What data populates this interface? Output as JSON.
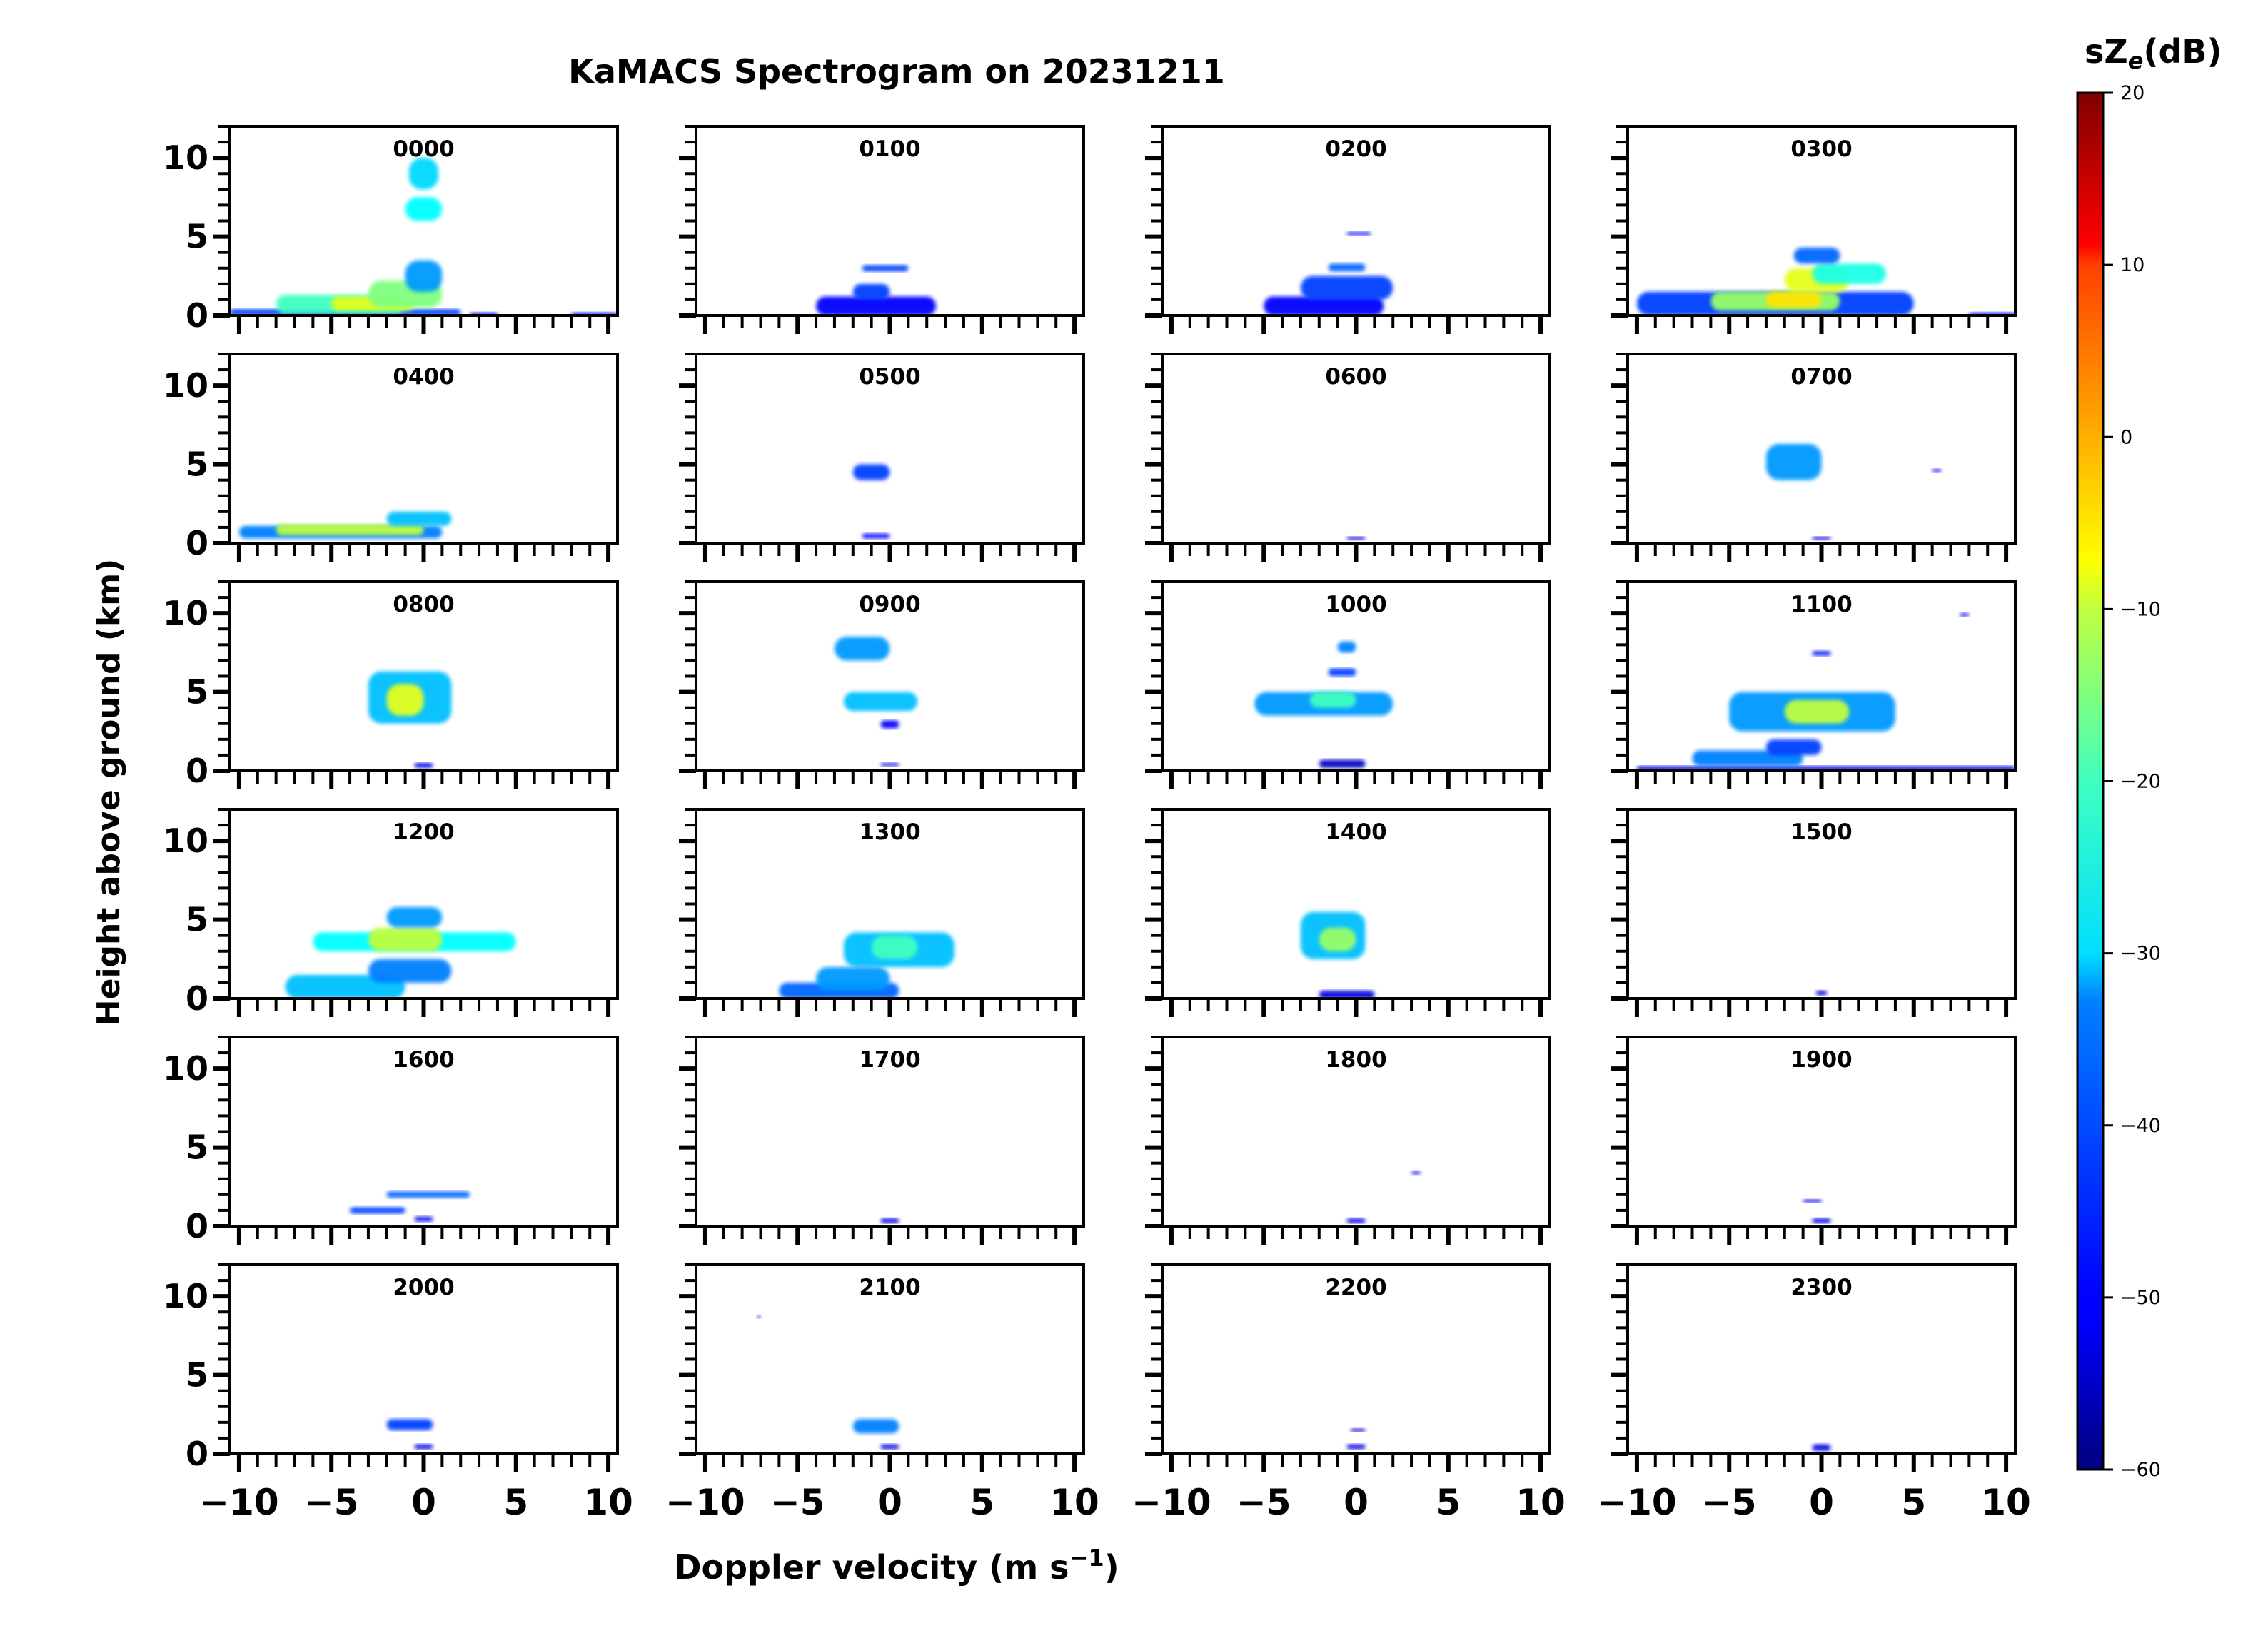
{
  "title": "KaMACS Spectrogram on 20231211",
  "xlabel": "Doppler velocity (m s",
  "xlabel_sup": "−1",
  "xlabel_end": ")",
  "ylabel": "Height above ground (km)",
  "colorbar": {
    "label_main": "sZ",
    "label_sub": "e",
    "label_end": "(dB)",
    "range": [
      -60,
      20
    ],
    "ticks": [
      "20",
      "10",
      "0",
      "−10",
      "−20",
      "−30",
      "−40",
      "−50",
      "−60"
    ],
    "colormap": "jet"
  },
  "chart_data": {
    "type": "heatmap",
    "grid": {
      "rows": 6,
      "cols": 4
    },
    "xlim": [
      -10.5,
      10.5
    ],
    "ylim": [
      0,
      12
    ],
    "x_ticks": [
      "−10",
      "−5",
      "0",
      "5",
      "10"
    ],
    "y_ticks": [
      "0",
      "5",
      "10"
    ],
    "panels": [
      {
        "label": "0000",
        "blobs": [
          {
            "x": [
              -10.5,
              2
            ],
            "y": [
              0,
              0.4
            ],
            "v": -45
          },
          {
            "x": [
              -8,
              -1
            ],
            "y": [
              0.1,
              1.3
            ],
            "v": -25
          },
          {
            "x": [
              -5,
              -0.5
            ],
            "y": [
              0.3,
              1.2
            ],
            "v": -12
          },
          {
            "x": [
              -3,
              1
            ],
            "y": [
              0.5,
              2.2
            ],
            "v": -20
          },
          {
            "x": [
              -1,
              1
            ],
            "y": [
              1.5,
              3.5
            ],
            "v": -38
          },
          {
            "x": [
              -1,
              1
            ],
            "y": [
              6,
              7.5
            ],
            "v": -30
          },
          {
            "x": [
              -0.8,
              0.8
            ],
            "y": [
              8,
              10
            ],
            "v": -33
          },
          {
            "x": [
              2.5,
              4
            ],
            "y": [
              0,
              0.2
            ],
            "v": -50
          },
          {
            "x": [
              8,
              10.5
            ],
            "y": [
              0,
              0.2
            ],
            "v": -50
          }
        ]
      },
      {
        "label": "0100",
        "blobs": [
          {
            "x": [
              -4,
              2.5
            ],
            "y": [
              0,
              1.2
            ],
            "v": -50
          },
          {
            "x": [
              -2,
              0
            ],
            "y": [
              1,
              2
            ],
            "v": -45
          },
          {
            "x": [
              -1.5,
              1
            ],
            "y": [
              2.8,
              3.2
            ],
            "v": -45
          }
        ]
      },
      {
        "label": "0200",
        "blobs": [
          {
            "x": [
              -5,
              1.5
            ],
            "y": [
              0,
              1.2
            ],
            "v": -50
          },
          {
            "x": [
              -3,
              2
            ],
            "y": [
              1,
              2.5
            ],
            "v": -45
          },
          {
            "x": [
              -1.5,
              0.5
            ],
            "y": [
              2.8,
              3.3
            ],
            "v": -42
          },
          {
            "x": [
              -0.5,
              0.8
            ],
            "y": [
              5.1,
              5.3
            ],
            "v": -50
          }
        ]
      },
      {
        "label": "0300",
        "blobs": [
          {
            "x": [
              -10,
              5
            ],
            "y": [
              0,
              1.5
            ],
            "v": -45
          },
          {
            "x": [
              -6,
              1
            ],
            "y": [
              0.3,
              1.5
            ],
            "v": -18
          },
          {
            "x": [
              -3,
              0
            ],
            "y": [
              0.5,
              1.5
            ],
            "v": -8
          },
          {
            "x": [
              -2,
              1.5
            ],
            "y": [
              1.5,
              3
            ],
            "v": -12
          },
          {
            "x": [
              -0.5,
              3.5
            ],
            "y": [
              2,
              3.3
            ],
            "v": -28
          },
          {
            "x": [
              -1.5,
              1
            ],
            "y": [
              3.3,
              4.3
            ],
            "v": -42
          },
          {
            "x": [
              8,
              10.5
            ],
            "y": [
              0,
              0.2
            ],
            "v": -50
          }
        ]
      },
      {
        "label": "0400",
        "blobs": [
          {
            "x": [
              -10,
              1
            ],
            "y": [
              0.3,
              1.1
            ],
            "v": -40
          },
          {
            "x": [
              -8,
              0
            ],
            "y": [
              0.5,
              1.2
            ],
            "v": -15
          },
          {
            "x": [
              -2,
              1.5
            ],
            "y": [
              1.1,
              2
            ],
            "v": -35
          }
        ]
      },
      {
        "label": "0500",
        "blobs": [
          {
            "x": [
              -2,
              0
            ],
            "y": [
              4,
              5
            ],
            "v": -45
          },
          {
            "x": [
              -1.5,
              0
            ],
            "y": [
              0.3,
              0.6
            ],
            "v": -50
          }
        ]
      },
      {
        "label": "0600",
        "blobs": [
          {
            "x": [
              -0.5,
              0.5
            ],
            "y": [
              0.2,
              0.4
            ],
            "v": -52
          }
        ]
      },
      {
        "label": "0700",
        "blobs": [
          {
            "x": [
              -3,
              0
            ],
            "y": [
              4,
              6.3
            ],
            "v": -38
          },
          {
            "x": [
              6,
              6.5
            ],
            "y": [
              4.5,
              4.7
            ],
            "v": -50
          },
          {
            "x": [
              -0.5,
              0.5
            ],
            "y": [
              0.2,
              0.4
            ],
            "v": -52
          }
        ]
      },
      {
        "label": "0800",
        "blobs": [
          {
            "x": [
              -3,
              1.5
            ],
            "y": [
              3,
              6.3
            ],
            "v": -35
          },
          {
            "x": [
              -2,
              0
            ],
            "y": [
              3.5,
              5.5
            ],
            "v": -12
          },
          {
            "x": [
              -0.5,
              0.5
            ],
            "y": [
              0.2,
              0.5
            ],
            "v": -52
          }
        ]
      },
      {
        "label": "0900",
        "blobs": [
          {
            "x": [
              -3,
              0
            ],
            "y": [
              7,
              8.5
            ],
            "v": -38
          },
          {
            "x": [
              -2.5,
              1.5
            ],
            "y": [
              3.8,
              5
            ],
            "v": -35
          },
          {
            "x": [
              -0.5,
              0.5
            ],
            "y": [
              2.7,
              3.2
            ],
            "v": -50
          },
          {
            "x": [
              -0.5,
              0.5
            ],
            "y": [
              0.3,
              0.5
            ],
            "v": -52
          }
        ]
      },
      {
        "label": "1000",
        "blobs": [
          {
            "x": [
              -5.5,
              2
            ],
            "y": [
              3.5,
              5
            ],
            "v": -38
          },
          {
            "x": [
              -2.5,
              0
            ],
            "y": [
              4,
              5
            ],
            "v": -25
          },
          {
            "x": [
              -1.5,
              0
            ],
            "y": [
              6,
              6.5
            ],
            "v": -45
          },
          {
            "x": [
              -1,
              0
            ],
            "y": [
              7.5,
              8.2
            ],
            "v": -40
          },
          {
            "x": [
              -2,
              0.5
            ],
            "y": [
              0.2,
              0.7
            ],
            "v": -55
          }
        ]
      },
      {
        "label": "1100",
        "blobs": [
          {
            "x": [
              -10,
              10.5
            ],
            "y": [
              0,
              0.3
            ],
            "v": -52
          },
          {
            "x": [
              -7,
              -1
            ],
            "y": [
              0.3,
              1.3
            ],
            "v": -40
          },
          {
            "x": [
              -3,
              0
            ],
            "y": [
              1,
              2
            ],
            "v": -45
          },
          {
            "x": [
              -5,
              4
            ],
            "y": [
              2.5,
              5
            ],
            "v": -38
          },
          {
            "x": [
              -2,
              1.5
            ],
            "y": [
              3,
              4.5
            ],
            "v": -15
          },
          {
            "x": [
              -0.5,
              0.5
            ],
            "y": [
              7.3,
              7.6
            ],
            "v": -48
          },
          {
            "x": [
              7.5,
              8
            ],
            "y": [
              9.8,
              10
            ],
            "v": -50
          }
        ]
      },
      {
        "label": "1200",
        "blobs": [
          {
            "x": [
              -7.5,
              -1
            ],
            "y": [
              0,
              1.5
            ],
            "v": -35
          },
          {
            "x": [
              -3,
              1.5
            ],
            "y": [
              1,
              2.5
            ],
            "v": -40
          },
          {
            "x": [
              -6,
              5
            ],
            "y": [
              3,
              4.2
            ],
            "v": -30
          },
          {
            "x": [
              -3,
              1
            ],
            "y": [
              3,
              4.5
            ],
            "v": -15
          },
          {
            "x": [
              -2,
              1
            ],
            "y": [
              4.5,
              5.8
            ],
            "v": -38
          }
        ]
      },
      {
        "label": "1300",
        "blobs": [
          {
            "x": [
              -6,
              0.5
            ],
            "y": [
              0,
              1
            ],
            "v": -42
          },
          {
            "x": [
              -2.5,
              3.5
            ],
            "y": [
              2,
              4.2
            ],
            "v": -35
          },
          {
            "x": [
              -1,
              1.5
            ],
            "y": [
              2.5,
              4
            ],
            "v": -25
          },
          {
            "x": [
              -4,
              0
            ],
            "y": [
              0.5,
              2
            ],
            "v": -38
          }
        ]
      },
      {
        "label": "1400",
        "blobs": [
          {
            "x": [
              -3,
              0.5
            ],
            "y": [
              2.5,
              5.5
            ],
            "v": -35
          },
          {
            "x": [
              -2,
              0
            ],
            "y": [
              3,
              4.5
            ],
            "v": -18
          },
          {
            "x": [
              -2,
              1
            ],
            "y": [
              0,
              0.5
            ],
            "v": -52
          }
        ]
      },
      {
        "label": "1500",
        "blobs": [
          {
            "x": [
              -0.3,
              0.3
            ],
            "y": [
              0.2,
              0.5
            ],
            "v": -52
          }
        ]
      },
      {
        "label": "1600",
        "blobs": [
          {
            "x": [
              -2,
              2.5
            ],
            "y": [
              1.8,
              2.2
            ],
            "v": -42
          },
          {
            "x": [
              -4,
              -1
            ],
            "y": [
              0.8,
              1.2
            ],
            "v": -45
          },
          {
            "x": [
              -0.5,
              0.5
            ],
            "y": [
              0.3,
              0.6
            ],
            "v": -52
          }
        ]
      },
      {
        "label": "1700",
        "blobs": [
          {
            "x": [
              -0.5,
              0.5
            ],
            "y": [
              0.2,
              0.5
            ],
            "v": -52
          }
        ]
      },
      {
        "label": "1800",
        "blobs": [
          {
            "x": [
              3,
              3.5
            ],
            "y": [
              3.3,
              3.5
            ],
            "v": -50
          },
          {
            "x": [
              -0.5,
              0.5
            ],
            "y": [
              0.2,
              0.5
            ],
            "v": -52
          }
        ]
      },
      {
        "label": "1900",
        "blobs": [
          {
            "x": [
              -1,
              0
            ],
            "y": [
              1.5,
              1.7
            ],
            "v": -52
          },
          {
            "x": [
              -0.5,
              0.5
            ],
            "y": [
              0.2,
              0.5
            ],
            "v": -52
          }
        ]
      },
      {
        "label": "2000",
        "blobs": [
          {
            "x": [
              -2,
              0.5
            ],
            "y": [
              1.5,
              2.2
            ],
            "v": -45
          },
          {
            "x": [
              -0.5,
              0.5
            ],
            "y": [
              0.3,
              0.6
            ],
            "v": -52
          }
        ]
      },
      {
        "label": "2100",
        "blobs": [
          {
            "x": [
              -2,
              0.5
            ],
            "y": [
              1.3,
              2.2
            ],
            "v": -40
          },
          {
            "x": [
              -0.5,
              0.5
            ],
            "y": [
              0.3,
              0.6
            ],
            "v": -52
          },
          {
            "x": [
              -7.2,
              -7
            ],
            "y": [
              8.6,
              8.8
            ],
            "v": -50
          }
        ]
      },
      {
        "label": "2200",
        "blobs": [
          {
            "x": [
              -0.5,
              0.5
            ],
            "y": [
              0.3,
              0.6
            ],
            "v": -52
          },
          {
            "x": [
              -0.3,
              0.5
            ],
            "y": [
              1.4,
              1.6
            ],
            "v": -55
          }
        ]
      },
      {
        "label": "2300",
        "blobs": [
          {
            "x": [
              -0.5,
              0.5
            ],
            "y": [
              0.2,
              0.6
            ],
            "v": -52
          }
        ]
      }
    ]
  }
}
